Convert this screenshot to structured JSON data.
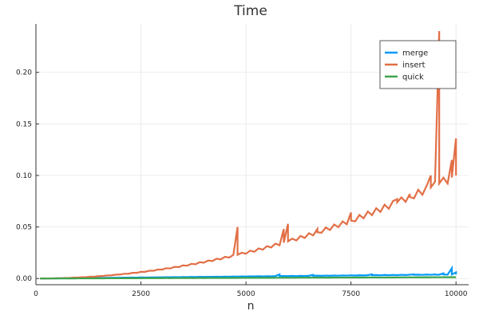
{
  "chart_data": {
    "type": "line",
    "title": "Time",
    "xlabel": "n",
    "ylabel": "",
    "xlim": [
      0,
      10300
    ],
    "ylim": [
      -0.006,
      0.247
    ],
    "xticks": [
      0,
      2500,
      5000,
      7500,
      10000
    ],
    "xtick_labels": [
      "0",
      "2500",
      "5000",
      "7500",
      "10000"
    ],
    "yticks": [
      0.0,
      0.05,
      0.1,
      0.15,
      0.2
    ],
    "ytick_labels": [
      "0.00",
      "0.05",
      "0.10",
      "0.15",
      "0.20"
    ],
    "grid": true,
    "legend_position": "top-right",
    "series": [
      {
        "name": "merge",
        "color": "#009af9",
        "x_range": [
          100,
          10000
        ],
        "step": 100,
        "base_formula": "0.0000004*n",
        "spikes": [
          [
            5800,
            0.004
          ],
          [
            6600,
            0.0035
          ],
          [
            8000,
            0.004
          ],
          [
            9000,
            0.004
          ],
          [
            9500,
            0.004
          ],
          [
            9700,
            0.005
          ],
          [
            9900,
            0.01
          ],
          [
            10000,
            0.006
          ]
        ]
      },
      {
        "name": "insert",
        "color": "#e26f46",
        "x_range": [
          100,
          10000
        ],
        "step": 100,
        "base_formula": "0.1*(n/10000)^2",
        "spikes": [
          [
            4800,
            0.05
          ],
          [
            5900,
            0.048
          ],
          [
            6000,
            0.053
          ],
          [
            6700,
            0.048
          ],
          [
            7500,
            0.064
          ],
          [
            8600,
            0.077
          ],
          [
            8900,
            0.082
          ],
          [
            9400,
            0.1
          ],
          [
            9600,
            0.24
          ],
          [
            9900,
            0.115
          ],
          [
            10000,
            0.136
          ]
        ]
      },
      {
        "name": "quick",
        "color": "#3da44d",
        "x_range": [
          100,
          10000
        ],
        "step": 100,
        "base_formula": "0.00000013*n",
        "spikes": []
      }
    ]
  }
}
